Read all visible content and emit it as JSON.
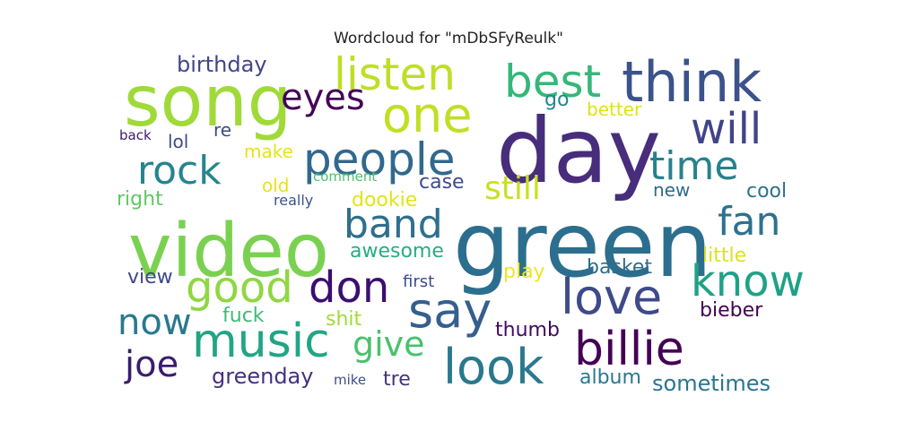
{
  "chart_data": {
    "type": "wordcloud",
    "title": "Wordcloud for \"mDbSFyReulk\"",
    "words": [
      {
        "text": "green",
        "weight": 1.0,
        "color": "#2c6e8e"
      },
      {
        "text": "day",
        "weight": 0.97,
        "color": "#472d7b"
      },
      {
        "text": "video",
        "weight": 0.9,
        "color": "#7ad151"
      },
      {
        "text": "song",
        "weight": 0.82,
        "color": "#a0da39"
      },
      {
        "text": "think",
        "weight": 0.58,
        "color": "#3b528b"
      },
      {
        "text": "billie",
        "weight": 0.57,
        "color": "#440154"
      },
      {
        "text": "music",
        "weight": 0.55,
        "color": "#21a585"
      },
      {
        "text": "people",
        "weight": 0.52,
        "color": "#31688e"
      },
      {
        "text": "say",
        "weight": 0.54,
        "color": "#355f8d"
      },
      {
        "text": "love",
        "weight": 0.54,
        "color": "#3e4a89"
      },
      {
        "text": "look",
        "weight": 0.54,
        "color": "#2a788e"
      },
      {
        "text": "best",
        "weight": 0.5,
        "color": "#35b779"
      },
      {
        "text": "listen",
        "weight": 0.48,
        "color": "#bddf26"
      },
      {
        "text": "one",
        "weight": 0.5,
        "color": "#c2df23"
      },
      {
        "text": "good",
        "weight": 0.5,
        "color": "#8fd744"
      },
      {
        "text": "don",
        "weight": 0.5,
        "color": "#3b0f70"
      },
      {
        "text": "will",
        "weight": 0.45,
        "color": "#414487"
      },
      {
        "text": "know",
        "weight": 0.45,
        "color": "#1fa187"
      },
      {
        "text": "time",
        "weight": 0.42,
        "color": "#26828e"
      },
      {
        "text": "fan",
        "weight": 0.42,
        "color": "#2c728e"
      },
      {
        "text": "rock",
        "weight": 0.42,
        "color": "#25858e"
      },
      {
        "text": "band",
        "weight": 0.42,
        "color": "#2e6f8e"
      },
      {
        "text": "eyes",
        "weight": 0.38,
        "color": "#450559"
      },
      {
        "text": "now",
        "weight": 0.36,
        "color": "#29798e"
      },
      {
        "text": "give",
        "weight": 0.36,
        "color": "#4ac16d"
      },
      {
        "text": "joe",
        "weight": 0.36,
        "color": "#3b1c6f"
      },
      {
        "text": "still",
        "weight": 0.34,
        "color": "#c8e020"
      },
      {
        "text": "birthday",
        "weight": 0.22,
        "color": "#404688"
      },
      {
        "text": "greenday",
        "weight": 0.22,
        "color": "#46317e"
      },
      {
        "text": "sometimes",
        "weight": 0.2,
        "color": "#2a768e"
      },
      {
        "text": "awesome",
        "weight": 0.19,
        "color": "#26ad81"
      },
      {
        "text": "case",
        "weight": 0.19,
        "color": "#3d4d8a"
      },
      {
        "text": "dookie",
        "weight": 0.19,
        "color": "#e2e418"
      },
      {
        "text": "album",
        "weight": 0.19,
        "color": "#2a778e"
      },
      {
        "text": "thumb",
        "weight": 0.19,
        "color": "#450a5c"
      },
      {
        "text": "bieber",
        "weight": 0.19,
        "color": "#440154"
      },
      {
        "text": "shit",
        "weight": 0.19,
        "color": "#a2da37"
      },
      {
        "text": "fuck",
        "weight": 0.19,
        "color": "#3dbc74"
      },
      {
        "text": "view",
        "weight": 0.19,
        "color": "#3e4989"
      },
      {
        "text": "tre",
        "weight": 0.19,
        "color": "#46327e"
      },
      {
        "text": "little",
        "weight": 0.19,
        "color": "#dde318"
      },
      {
        "text": "basket",
        "weight": 0.19,
        "color": "#2f6c8e"
      },
      {
        "text": "cool",
        "weight": 0.19,
        "color": "#2d718e"
      },
      {
        "text": "new",
        "weight": 0.17,
        "color": "#2f6b8e"
      },
      {
        "text": "lol",
        "weight": 0.17,
        "color": "#3e4c8a"
      },
      {
        "text": "right",
        "weight": 0.17,
        "color": "#5ec962"
      },
      {
        "text": "make",
        "weight": 0.17,
        "color": "#e5e419"
      },
      {
        "text": "re",
        "weight": 0.17,
        "color": "#3e4989"
      },
      {
        "text": "better",
        "weight": 0.17,
        "color": "#dde318"
      },
      {
        "text": "go",
        "weight": 0.17,
        "color": "#24868e"
      },
      {
        "text": "old",
        "weight": 0.17,
        "color": "#e5e419"
      },
      {
        "text": "play",
        "weight": 0.17,
        "color": "#f1e51d"
      },
      {
        "text": "first",
        "weight": 0.14,
        "color": "#3e4a89"
      },
      {
        "text": "back",
        "weight": 0.13,
        "color": "#3b1c6f"
      },
      {
        "text": "really",
        "weight": 0.13,
        "color": "#3b528b"
      },
      {
        "text": "comment",
        "weight": 0.12,
        "color": "#4ac16d"
      },
      {
        "text": "mike",
        "weight": 0.13,
        "color": "#3e4c8a"
      }
    ]
  }
}
